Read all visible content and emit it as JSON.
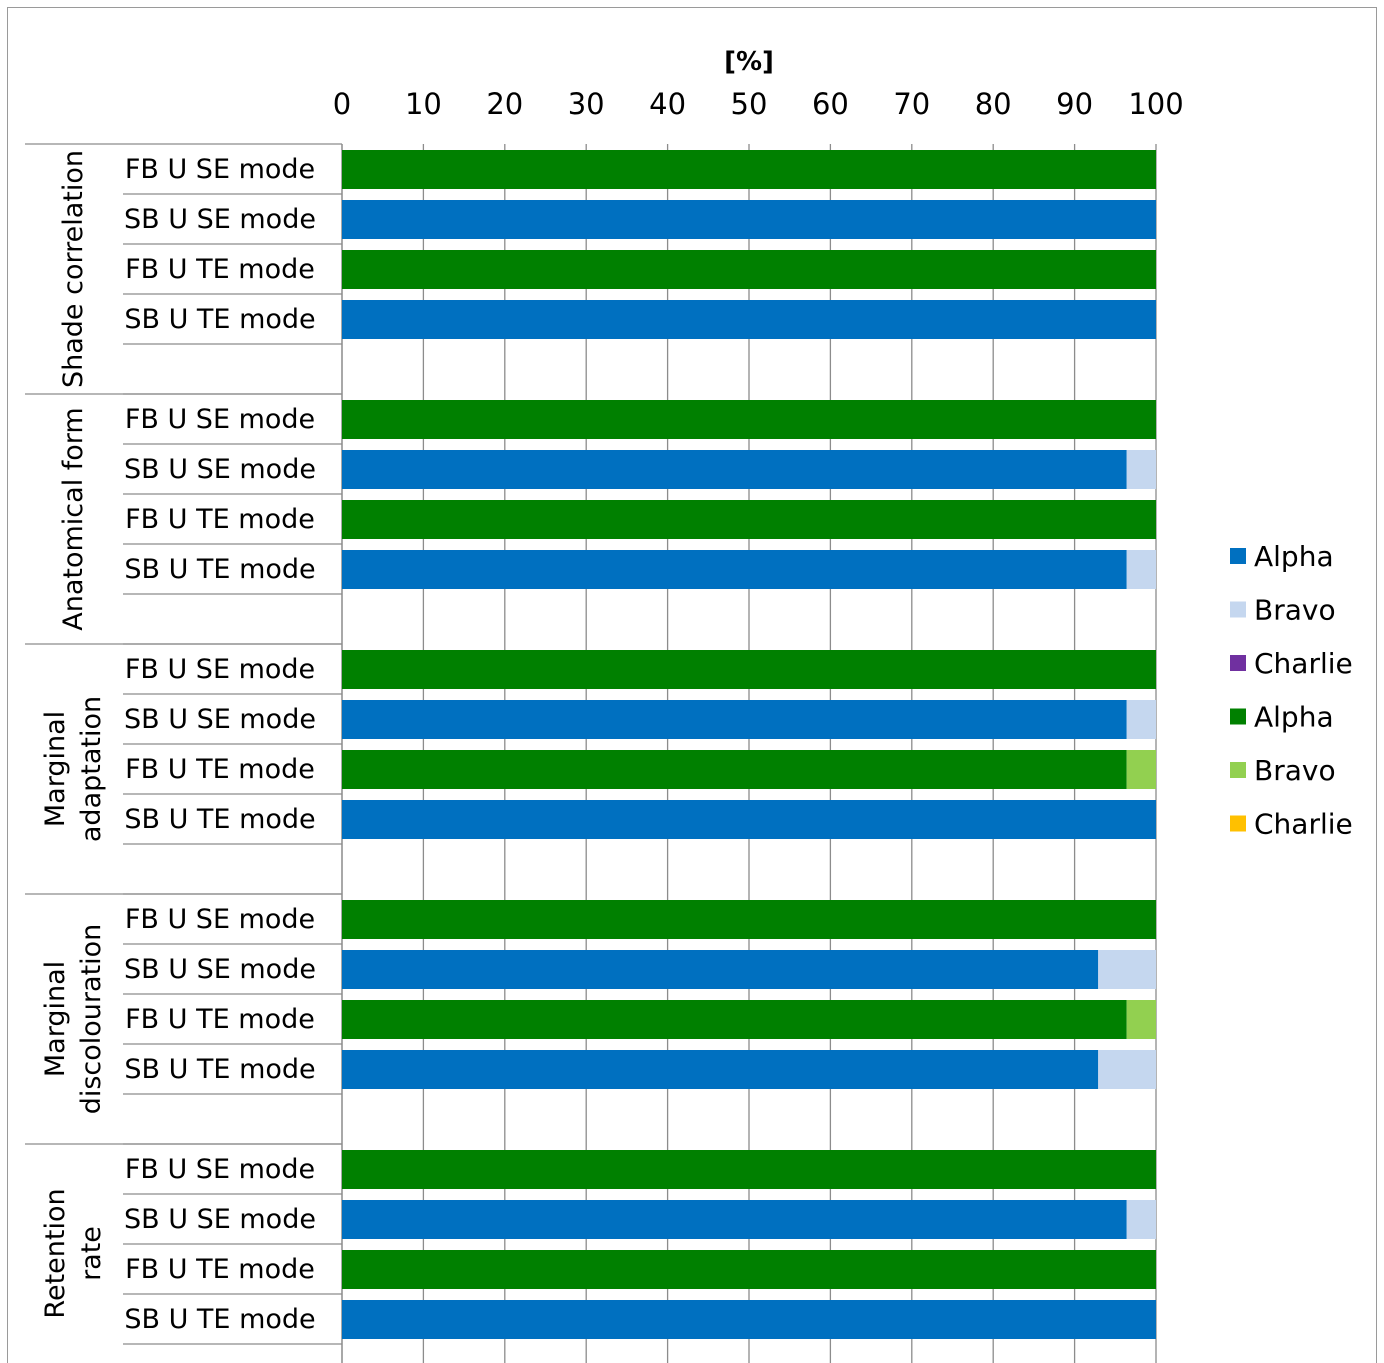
{
  "chart_data": {
    "type": "bar",
    "orientation": "horizontal",
    "stacked": true,
    "xlabel": "[%]",
    "xlim": [
      0,
      100
    ],
    "xticks": [
      0,
      10,
      20,
      30,
      40,
      50,
      60,
      70,
      80,
      90,
      100
    ],
    "grid": true,
    "legend_position": "right",
    "legend": [
      {
        "name": "Alpha",
        "color": "#0070c0"
      },
      {
        "name": "Bravo",
        "color": "#c5d7ef"
      },
      {
        "name": "Charlie",
        "color": "#7030a0"
      },
      {
        "name": "Alpha",
        "color": "#008000"
      },
      {
        "name": "Bravo",
        "color": "#92d050"
      },
      {
        "name": "Charlie",
        "color": "#ffc000"
      }
    ],
    "groups": [
      {
        "label": "Shade correlation",
        "rows": [
          {
            "label": "FB U SE mode",
            "palette": "green",
            "values": [
              100,
              0,
              0
            ]
          },
          {
            "label": "SB U SE mode",
            "palette": "blue",
            "values": [
              100,
              0,
              0
            ]
          },
          {
            "label": "FB U TE mode",
            "palette": "green",
            "values": [
              100,
              0,
              0
            ]
          },
          {
            "label": "SB U TE mode",
            "palette": "blue",
            "values": [
              100,
              0,
              0
            ]
          }
        ]
      },
      {
        "label": "Anatomical form",
        "rows": [
          {
            "label": "FB U SE mode",
            "palette": "green",
            "values": [
              100,
              0,
              0
            ]
          },
          {
            "label": "SB U SE mode",
            "palette": "blue",
            "values": [
              96.4,
              3.6,
              0
            ]
          },
          {
            "label": "FB U TE mode",
            "palette": "green",
            "values": [
              100,
              0,
              0
            ]
          },
          {
            "label": "SB U TE mode",
            "palette": "blue",
            "values": [
              96.4,
              3.6,
              0
            ]
          }
        ]
      },
      {
        "label": "Marginal adaptation",
        "rows": [
          {
            "label": "FB U SE mode",
            "palette": "green",
            "values": [
              100,
              0,
              0
            ]
          },
          {
            "label": "SB U SE mode",
            "palette": "blue",
            "values": [
              96.4,
              3.6,
              0
            ]
          },
          {
            "label": "FB U TE mode",
            "palette": "green",
            "values": [
              96.4,
              3.6,
              0
            ]
          },
          {
            "label": "SB U TE mode",
            "palette": "blue",
            "values": [
              100,
              0,
              0
            ]
          }
        ]
      },
      {
        "label": "Marginal discolouration",
        "rows": [
          {
            "label": "FB U SE mode",
            "palette": "green",
            "values": [
              100,
              0,
              0
            ]
          },
          {
            "label": "SB U SE mode",
            "palette": "blue",
            "values": [
              92.9,
              7.1,
              0
            ]
          },
          {
            "label": "FB U TE mode",
            "palette": "green",
            "values": [
              96.4,
              3.6,
              0
            ]
          },
          {
            "label": "SB U TE mode",
            "palette": "blue",
            "values": [
              92.9,
              7.1,
              0
            ]
          }
        ]
      },
      {
        "label": "Retention rate",
        "rows": [
          {
            "label": "FB U SE mode",
            "palette": "green",
            "values": [
              100,
              0,
              0
            ]
          },
          {
            "label": "SB U SE mode",
            "palette": "blue",
            "values": [
              96.4,
              3.6,
              0
            ]
          },
          {
            "label": "FB U TE mode",
            "palette": "green",
            "values": [
              100,
              0,
              0
            ]
          },
          {
            "label": "SB U TE mode",
            "palette": "blue",
            "values": [
              100,
              0,
              0
            ]
          }
        ]
      }
    ],
    "palettes": {
      "blue": [
        "#0070c0",
        "#c5d7ef",
        "#7030a0"
      ],
      "green": [
        "#008000",
        "#92d050",
        "#ffc000"
      ]
    }
  }
}
